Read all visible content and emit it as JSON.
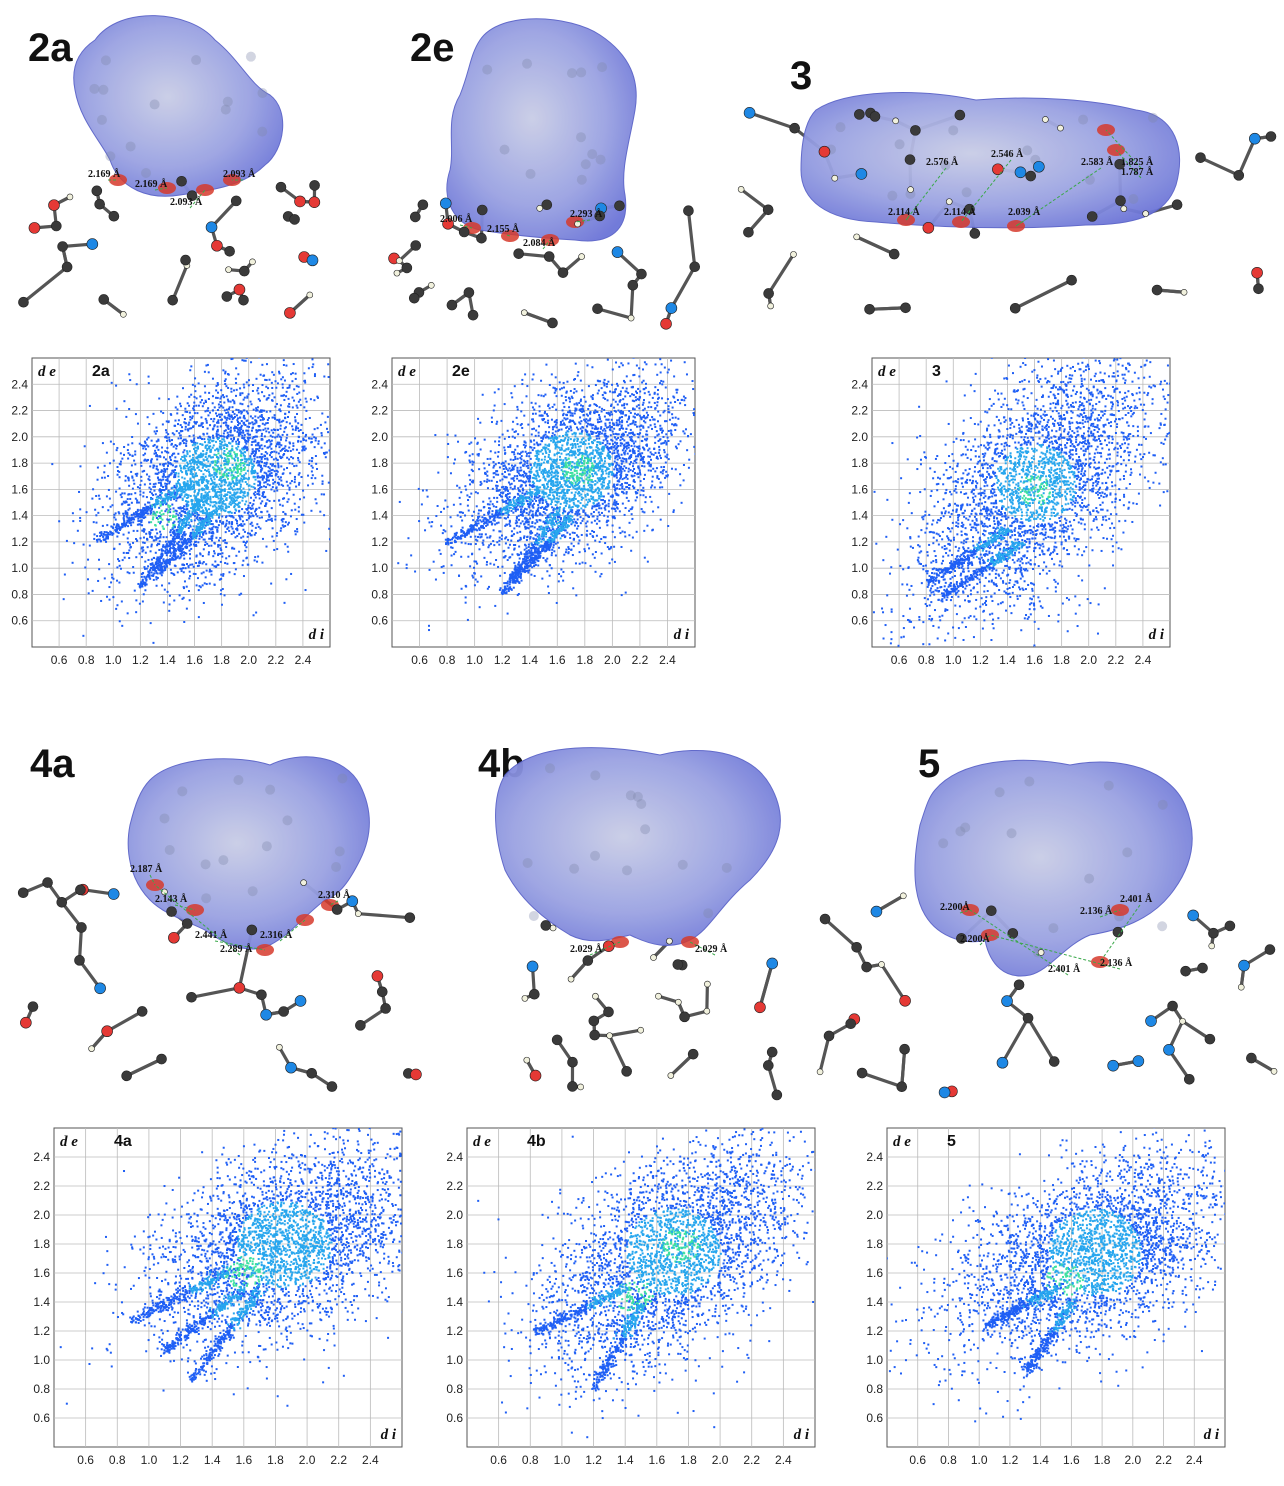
{
  "structures": [
    {
      "label": "2a",
      "distances": [
        "2.169 Å",
        "2.169 Å",
        "2.093 Å",
        "2.093 Å"
      ]
    },
    {
      "label": "2e",
      "distances": [
        "2.006 Å",
        "2.155 Å",
        "2.084 Å",
        "2.293 Å"
      ]
    },
    {
      "label": "3",
      "distances": [
        "2.576 Å",
        "2.546 Å",
        "2.583 Å",
        "1.825 Å",
        "1.787 Å",
        "2.114 Å",
        "2.114 Å",
        "2.039 Å"
      ]
    },
    {
      "label": "4a",
      "distances": [
        "2.187 Å",
        "2.143 Å",
        "2.441 Å",
        "2.316 Å",
        "2.310 Å",
        "2.289 Å"
      ]
    },
    {
      "label": "4b",
      "distances": [
        "2.029 Å",
        "2.029 Å"
      ]
    },
    {
      "label": "5",
      "distances": [
        "2.200Å",
        "2.200Å",
        "2.136 Å",
        "2.401 Å",
        "2.401 Å",
        "2.136 Å"
      ]
    }
  ],
  "colors": {
    "surface": "#6b74d8",
    "surface_light": "#c9cde6",
    "contact": "#d63a2c",
    "carbon": "#3a3a3a",
    "nitrogen": "#1e88e5",
    "oxygen": "#e53935",
    "hydrogen": "#f1f1dd",
    "fp_dark": "#1f5ff5",
    "fp_mid": "#27a6ee",
    "fp_hot": "#3de0a0"
  },
  "chart_data": [
    {
      "type": "scatter",
      "plot_label": "2a",
      "xlabel": "d i",
      "ylabel": "d e",
      "xticks": [
        "0.6",
        "0.8",
        "1.0",
        "1.2",
        "1.4",
        "1.6",
        "1.8",
        "2.0",
        "2.2",
        "2.4"
      ],
      "yticks": [
        "0.6",
        "0.8",
        "1.0",
        "1.2",
        "1.4",
        "1.6",
        "1.8",
        "2.0",
        "2.2",
        "2.4"
      ],
      "xlim": [
        0.4,
        2.6
      ],
      "ylim": [
        0.4,
        2.6
      ],
      "grid": true,
      "blob": {
        "center": [
          1.75,
          1.7
        ],
        "spread": [
          0.45,
          0.55
        ],
        "tilt": 0.8
      },
      "spikes": [
        {
          "from": [
            0.88,
            1.22
          ],
          "to": [
            1.55,
            1.65
          ]
        },
        {
          "from": [
            1.2,
            0.88
          ],
          "to": [
            1.65,
            1.55
          ]
        },
        {
          "from": [
            1.3,
            0.95
          ],
          "to": [
            1.75,
            1.45
          ]
        }
      ],
      "hot": [
        [
          1.35,
          1.4
        ],
        [
          1.85,
          1.8
        ]
      ]
    },
    {
      "type": "scatter",
      "plot_label": "2e",
      "xlabel": "d i",
      "ylabel": "d e",
      "xticks": [
        "0.6",
        "0.8",
        "1.0",
        "1.2",
        "1.4",
        "1.6",
        "1.8",
        "2.0",
        "2.2",
        "2.4"
      ],
      "yticks": [
        "0.6",
        "0.8",
        "1.0",
        "1.2",
        "1.4",
        "1.6",
        "1.8",
        "2.0",
        "2.2",
        "2.4"
      ],
      "xlim": [
        0.4,
        2.6
      ],
      "ylim": [
        0.4,
        2.6
      ],
      "grid": true,
      "blob": {
        "center": [
          1.7,
          1.75
        ],
        "spread": [
          0.45,
          0.5
        ],
        "tilt": 0.7
      },
      "spikes": [
        {
          "from": [
            0.8,
            1.2
          ],
          "to": [
            1.45,
            1.6
          ]
        },
        {
          "from": [
            1.2,
            0.82
          ],
          "to": [
            1.6,
            1.45
          ]
        },
        {
          "from": [
            1.28,
            0.9
          ],
          "to": [
            1.7,
            1.4
          ]
        }
      ],
      "hot": [
        [
          1.75,
          1.75
        ]
      ]
    },
    {
      "type": "scatter",
      "plot_label": "3",
      "xlabel": "d i",
      "ylabel": "d e",
      "xticks": [
        "0.6",
        "0.8",
        "1.0",
        "1.2",
        "1.4",
        "1.6",
        "1.8",
        "2.0",
        "2.2",
        "2.4"
      ],
      "yticks": [
        "0.6",
        "0.8",
        "1.0",
        "1.2",
        "1.4",
        "1.6",
        "1.8",
        "2.0",
        "2.2",
        "2.4"
      ],
      "xlim": [
        0.4,
        2.6
      ],
      "ylim": [
        0.4,
        2.6
      ],
      "grid": true,
      "blob": {
        "center": [
          1.6,
          1.65
        ],
        "spread": [
          0.6,
          0.55
        ],
        "tilt": 0.9
      },
      "spikes": [
        {
          "from": [
            0.8,
            0.9
          ],
          "to": [
            1.4,
            1.3
          ]
        },
        {
          "from": [
            0.9,
            0.78
          ],
          "to": [
            1.5,
            1.2
          ]
        }
      ],
      "hot": [
        [
          1.6,
          1.6
        ]
      ]
    },
    {
      "type": "scatter",
      "plot_label": "4a",
      "xlabel": "d i",
      "ylabel": "d e",
      "xticks": [
        "0.6",
        "0.8",
        "1.0",
        "1.2",
        "1.4",
        "1.6",
        "1.8",
        "2.0",
        "2.2",
        "2.4"
      ],
      "yticks": [
        "0.6",
        "0.8",
        "1.0",
        "1.2",
        "1.4",
        "1.6",
        "1.8",
        "2.0",
        "2.2",
        "2.4"
      ],
      "xlim": [
        0.4,
        2.6
      ],
      "ylim": [
        0.4,
        2.6
      ],
      "grid": true,
      "blob": {
        "center": [
          1.85,
          1.8
        ],
        "spread": [
          0.45,
          0.5
        ],
        "tilt": 0.6
      },
      "spikes": [
        {
          "from": [
            0.9,
            1.28
          ],
          "to": [
            1.5,
            1.62
          ]
        },
        {
          "from": [
            1.08,
            1.06
          ],
          "to": [
            1.6,
            1.5
          ]
        },
        {
          "from": [
            1.26,
            0.86
          ],
          "to": [
            1.7,
            1.5
          ]
        }
      ],
      "hot": [
        [
          1.6,
          1.6
        ]
      ]
    },
    {
      "type": "scatter",
      "plot_label": "4b",
      "xlabel": "d i",
      "ylabel": "d e",
      "xticks": [
        "0.6",
        "0.8",
        "1.0",
        "1.2",
        "1.4",
        "1.6",
        "1.8",
        "2.0",
        "2.2",
        "2.4"
      ],
      "yticks": [
        "0.6",
        "0.8",
        "1.0",
        "1.2",
        "1.4",
        "1.6",
        "1.8",
        "2.0",
        "2.2",
        "2.4"
      ],
      "xlim": [
        0.4,
        2.6
      ],
      "ylim": [
        0.4,
        2.6
      ],
      "grid": true,
      "blob": {
        "center": [
          1.7,
          1.75
        ],
        "spread": [
          0.5,
          0.5
        ],
        "tilt": 0.8
      },
      "spikes": [
        {
          "from": [
            0.82,
            1.2
          ],
          "to": [
            1.4,
            1.5
          ]
        },
        {
          "from": [
            1.2,
            0.82
          ],
          "to": [
            1.5,
            1.4
          ]
        }
      ],
      "hot": [
        [
          1.45,
          1.45
        ],
        [
          1.75,
          1.8
        ]
      ]
    },
    {
      "type": "scatter",
      "plot_label": "5",
      "xlabel": "d i",
      "ylabel": "d e",
      "xticks": [
        "0.6",
        "0.8",
        "1.0",
        "1.2",
        "1.4",
        "1.6",
        "1.8",
        "2.0",
        "2.2",
        "2.4"
      ],
      "yticks": [
        "0.6",
        "0.8",
        "1.0",
        "1.2",
        "1.4",
        "1.6",
        "1.8",
        "2.0",
        "2.2",
        "2.4"
      ],
      "xlim": [
        0.4,
        2.6
      ],
      "ylim": [
        0.4,
        2.6
      ],
      "grid": true,
      "blob": {
        "center": [
          1.75,
          1.75
        ],
        "spread": [
          0.5,
          0.5
        ],
        "tilt": 0.5
      },
      "spikes": [
        {
          "from": [
            1.05,
            1.25
          ],
          "to": [
            1.5,
            1.5
          ]
        },
        {
          "from": [
            1.3,
            0.92
          ],
          "to": [
            1.6,
            1.4
          ]
        }
      ],
      "hot": [
        [
          1.55,
          1.55
        ]
      ]
    }
  ]
}
